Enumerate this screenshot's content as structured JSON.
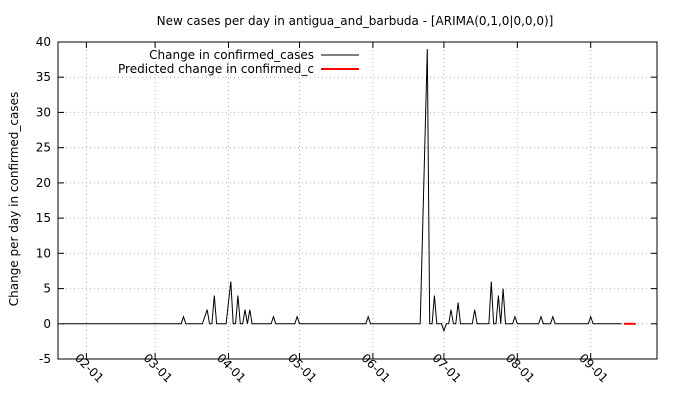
{
  "chart_data": {
    "type": "line",
    "title": "New cases per day in antigua_and_barbuda -  [ARIMA(0,1,0|0,0,0)]",
    "xlabel": "",
    "ylabel": "Change per day in confirmed_cases",
    "ylim": [
      -5,
      40
    ],
    "yticks": [
      -5,
      0,
      5,
      10,
      15,
      20,
      25,
      30,
      35,
      40
    ],
    "xlim": [
      "2020-01-20",
      "2020-09-29"
    ],
    "xticks": [
      {
        "date": "2020-02-01",
        "label": "02-01"
      },
      {
        "date": "2020-03-01",
        "label": "03-01"
      },
      {
        "date": "2020-04-01",
        "label": "04-01"
      },
      {
        "date": "2020-05-01",
        "label": "05-01"
      },
      {
        "date": "2020-06-01",
        "label": "06-01"
      },
      {
        "date": "2020-07-01",
        "label": "07-01"
      },
      {
        "date": "2020-08-01",
        "label": "08-01"
      },
      {
        "date": "2020-09-01",
        "label": "09-01"
      }
    ],
    "grid": true,
    "legend_position": "top-left",
    "series": [
      {
        "name": "Change in confirmed_cases",
        "color": "#000000",
        "points": [
          [
            "2020-01-22",
            0
          ],
          [
            "2020-03-12",
            0
          ],
          [
            "2020-03-13",
            1
          ],
          [
            "2020-03-14",
            0
          ],
          [
            "2020-03-21",
            0
          ],
          [
            "2020-03-23",
            2
          ],
          [
            "2020-03-24",
            0
          ],
          [
            "2020-03-25",
            0
          ],
          [
            "2020-03-26",
            4
          ],
          [
            "2020-03-27",
            0
          ],
          [
            "2020-03-31",
            0
          ],
          [
            "2020-04-02",
            6
          ],
          [
            "2020-04-03",
            0
          ],
          [
            "2020-04-04",
            0
          ],
          [
            "2020-04-05",
            4
          ],
          [
            "2020-04-06",
            0
          ],
          [
            "2020-04-07",
            0
          ],
          [
            "2020-04-08",
            2
          ],
          [
            "2020-04-09",
            0
          ],
          [
            "2020-04-10",
            2
          ],
          [
            "2020-04-11",
            0
          ],
          [
            "2020-04-19",
            0
          ],
          [
            "2020-04-20",
            1
          ],
          [
            "2020-04-21",
            0
          ],
          [
            "2020-04-29",
            0
          ],
          [
            "2020-04-30",
            1
          ],
          [
            "2020-05-01",
            0
          ],
          [
            "2020-05-29",
            0
          ],
          [
            "2020-05-30",
            1
          ],
          [
            "2020-05-31",
            0
          ],
          [
            "2020-06-21",
            0
          ],
          [
            "2020-06-24",
            39
          ],
          [
            "2020-06-25",
            0
          ],
          [
            "2020-06-26",
            0
          ],
          [
            "2020-06-27",
            4
          ],
          [
            "2020-06-28",
            0
          ],
          [
            "2020-06-30",
            0
          ],
          [
            "2020-07-01",
            -1
          ],
          [
            "2020-07-02",
            0
          ],
          [
            "2020-07-03",
            0
          ],
          [
            "2020-07-04",
            2
          ],
          [
            "2020-07-05",
            0
          ],
          [
            "2020-07-06",
            0
          ],
          [
            "2020-07-07",
            3
          ],
          [
            "2020-07-08",
            0
          ],
          [
            "2020-07-13",
            0
          ],
          [
            "2020-07-14",
            2
          ],
          [
            "2020-07-15",
            0
          ],
          [
            "2020-07-20",
            0
          ],
          [
            "2020-07-21",
            6
          ],
          [
            "2020-07-22",
            0
          ],
          [
            "2020-07-23",
            0
          ],
          [
            "2020-07-24",
            4
          ],
          [
            "2020-07-25",
            0
          ],
          [
            "2020-07-26",
            5
          ],
          [
            "2020-07-27",
            0
          ],
          [
            "2020-07-30",
            0
          ],
          [
            "2020-07-31",
            1
          ],
          [
            "2020-08-01",
            0
          ],
          [
            "2020-08-10",
            0
          ],
          [
            "2020-08-11",
            1
          ],
          [
            "2020-08-12",
            0
          ],
          [
            "2020-08-15",
            0
          ],
          [
            "2020-08-16",
            1
          ],
          [
            "2020-08-17",
            0
          ],
          [
            "2020-08-31",
            0
          ],
          [
            "2020-09-01",
            1
          ],
          [
            "2020-09-02",
            0
          ],
          [
            "2020-09-14",
            0
          ]
        ]
      },
      {
        "name": "Predicted change in confirmed_c",
        "color": "#ff0000",
        "points": [
          [
            "2020-09-15",
            0
          ],
          [
            "2020-09-20",
            0
          ]
        ]
      }
    ]
  }
}
